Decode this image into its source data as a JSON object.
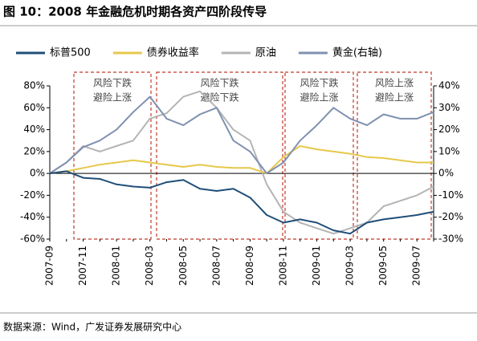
{
  "chart_data": {
    "type": "line",
    "title": "图 10：2008 年金融危机时期各资产四阶段传导",
    "source": "数据来源：Wind，广发证券发展研究中心",
    "categories": [
      "2007-09",
      null,
      "2007-11",
      null,
      "2008-01",
      null,
      "2008-03",
      null,
      "2008-05",
      null,
      "2008-07",
      null,
      "2008-09",
      null,
      "2008-11",
      null,
      "2009-01",
      null,
      "2009-03",
      null,
      "2009-05",
      null,
      "2009-07",
      null
    ],
    "series": [
      {
        "name": "标普500",
        "color": "#1f4e79",
        "values": [
          0,
          2,
          -4,
          -5,
          -10,
          -12,
          -13,
          -8,
          -6,
          -14,
          -16,
          -14,
          -22,
          -38,
          -45,
          -42,
          -45,
          -52,
          -55,
          -45,
          -42,
          -40,
          -38,
          -35
        ]
      },
      {
        "name": "债券收益率",
        "color": "#e6c84a",
        "values": [
          0,
          2,
          5,
          8,
          10,
          12,
          10,
          8,
          6,
          8,
          6,
          5,
          5,
          0,
          15,
          25,
          22,
          20,
          18,
          15,
          14,
          12,
          10,
          10
        ]
      },
      {
        "name": "原油",
        "color": "#b4b4b4",
        "values": [
          0,
          10,
          25,
          20,
          25,
          30,
          50,
          55,
          70,
          75,
          60,
          40,
          30,
          -10,
          -35,
          -45,
          -50,
          -55,
          -50,
          -45,
          -30,
          -25,
          -20,
          -12
        ]
      },
      {
        "name": "黄金(右轴)",
        "color": "#7f91b0",
        "axis": "y2",
        "values": [
          0,
          5,
          12,
          15,
          20,
          28,
          35,
          25,
          22,
          27,
          30,
          15,
          10,
          0,
          5,
          15,
          22,
          30,
          25,
          22,
          27,
          25,
          25,
          28
        ]
      }
    ],
    "ylim": [
      -60,
      80
    ],
    "yticks": [
      {
        "value": -60,
        "label": "-60%"
      },
      {
        "value": -40,
        "label": "-40%"
      },
      {
        "value": -20,
        "label": "-20%"
      },
      {
        "value": 0,
        "label": "0%"
      },
      {
        "value": 20,
        "label": "20%"
      },
      {
        "value": 40,
        "label": "40%"
      },
      {
        "value": 60,
        "label": "60%"
      },
      {
        "value": 80,
        "label": "80%"
      }
    ],
    "y2lim": [
      -30,
      40
    ],
    "y2ticks": [
      {
        "value": -30,
        "label": "-30%"
      },
      {
        "value": -20,
        "label": "-20%"
      },
      {
        "value": -10,
        "label": "-10%"
      },
      {
        "value": 0,
        "label": "0%"
      },
      {
        "value": 10,
        "label": "10%"
      },
      {
        "value": 20,
        "label": "20%"
      },
      {
        "value": 30,
        "label": "30%"
      },
      {
        "value": 40,
        "label": "40%"
      }
    ],
    "annotations": [
      {
        "lines": [
          "风险下跌",
          "避险上涨"
        ]
      },
      {
        "lines": [
          "风险下跌",
          "避险下跌"
        ]
      },
      {
        "lines": [
          "风险下跌",
          "避险上涨"
        ]
      },
      {
        "lines": [
          "风险上涨",
          "避险上涨"
        ]
      }
    ]
  }
}
